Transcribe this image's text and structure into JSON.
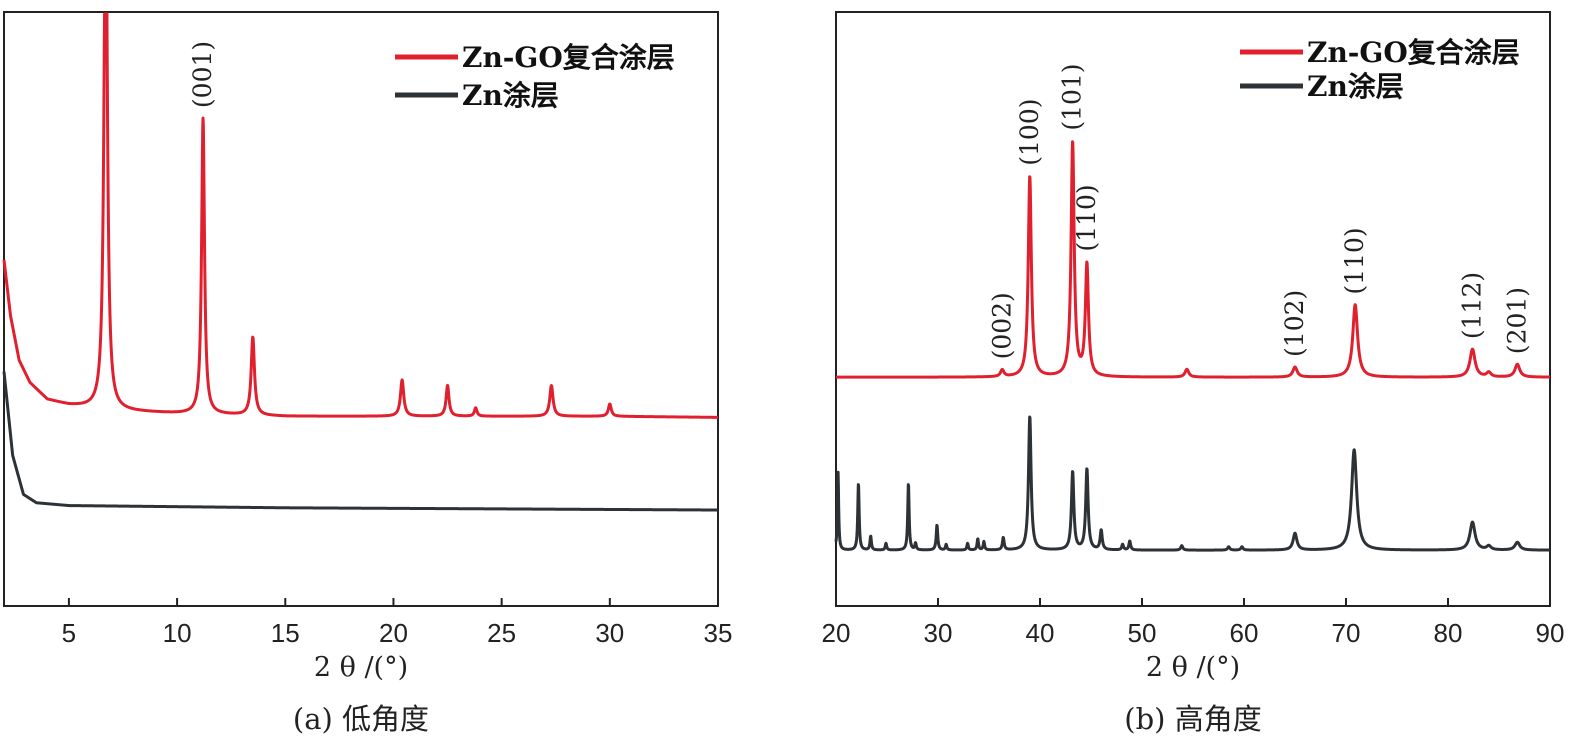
{
  "chart_data": [
    {
      "type": "line",
      "caption": "(a) 低角度",
      "xlabel": "2 θ /(°)",
      "ylabel": "",
      "xlim": [
        2,
        35
      ],
      "xticks": [
        5,
        10,
        15,
        20,
        25,
        30,
        35
      ],
      "yticks_shown": false,
      "legend_position": "top-right",
      "series": [
        {
          "name": "Zn-GO复合涂层",
          "color": "#e0202e",
          "baseline": [
            [
              2,
              0.62
            ],
            [
              2.3,
              0.52
            ],
            [
              2.7,
              0.44
            ],
            [
              3.2,
              0.4
            ],
            [
              4,
              0.37
            ],
            [
              5,
              0.36
            ],
            [
              6,
              0.355
            ],
            [
              7,
              0.35
            ],
            [
              10,
              0.345
            ],
            [
              15,
              0.34
            ],
            [
              20,
              0.34
            ],
            [
              25,
              0.34
            ],
            [
              30,
              0.34
            ],
            [
              35,
              0.338
            ]
          ],
          "peaks": [
            {
              "x": 6.7,
              "height": 1.0,
              "width": 0.09
            },
            {
              "x": 11.2,
              "height": 0.53,
              "width": 0.08
            },
            {
              "x": 13.5,
              "height": 0.14,
              "width": 0.09
            },
            {
              "x": 20.4,
              "height": 0.065,
              "width": 0.09
            },
            {
              "x": 22.5,
              "height": 0.055,
              "width": 0.08
            },
            {
              "x": 23.8,
              "height": 0.015,
              "width": 0.07
            },
            {
              "x": 27.3,
              "height": 0.055,
              "width": 0.09
            },
            {
              "x": 30.0,
              "height": 0.022,
              "width": 0.08
            }
          ]
        },
        {
          "name": "Zn涂层",
          "color": "#2c3236",
          "baseline": [
            [
              2,
              0.42
            ],
            [
              2.4,
              0.27
            ],
            [
              2.9,
              0.2
            ],
            [
              3.5,
              0.185
            ],
            [
              5,
              0.18
            ],
            [
              10,
              0.178
            ],
            [
              15,
              0.176
            ],
            [
              20,
              0.175
            ],
            [
              25,
              0.174
            ],
            [
              30,
              0.173
            ],
            [
              35,
              0.172
            ]
          ],
          "peaks": []
        }
      ],
      "annotations": [
        {
          "text": "(001)",
          "x": 11.2
        }
      ]
    },
    {
      "type": "line",
      "caption": "(b) 高角度",
      "xlabel": "2 θ /(°)",
      "ylabel": "",
      "xlim": [
        20,
        90
      ],
      "xticks": [
        20,
        30,
        40,
        50,
        60,
        70,
        80,
        90
      ],
      "yticks_shown": false,
      "legend_position": "top-right",
      "series": [
        {
          "name": "Zn-GO复合涂层",
          "color": "#e0202e",
          "baseline": [
            [
              20,
              0.41
            ],
            [
              40,
              0.41
            ],
            [
              60,
              0.41
            ],
            [
              90,
              0.41
            ]
          ],
          "peaks": [
            {
              "x": 36.3,
              "height": 0.012,
              "width": 0.2
            },
            {
              "x": 39.0,
              "height": 0.36,
              "width": 0.18
            },
            {
              "x": 43.2,
              "height": 0.42,
              "width": 0.18
            },
            {
              "x": 44.6,
              "height": 0.2,
              "width": 0.18
            },
            {
              "x": 54.4,
              "height": 0.014,
              "width": 0.22
            },
            {
              "x": 65.0,
              "height": 0.018,
              "width": 0.25
            },
            {
              "x": 70.9,
              "height": 0.13,
              "width": 0.28
            },
            {
              "x": 82.4,
              "height": 0.05,
              "width": 0.3
            },
            {
              "x": 84.0,
              "height": 0.008,
              "width": 0.25
            },
            {
              "x": 86.8,
              "height": 0.023,
              "width": 0.28
            }
          ]
        },
        {
          "name": "Zn涂层",
          "color": "#2c3236",
          "baseline": [
            [
              20,
              0.1
            ],
            [
              40,
              0.1
            ],
            [
              60,
              0.1
            ],
            [
              90,
              0.1
            ]
          ],
          "peaks": [
            {
              "x": 20.2,
              "height": 0.14,
              "width": 0.07
            },
            {
              "x": 22.2,
              "height": 0.12,
              "width": 0.08
            },
            {
              "x": 23.4,
              "height": 0.025,
              "width": 0.08
            },
            {
              "x": 24.9,
              "height": 0.012,
              "width": 0.08
            },
            {
              "x": 27.1,
              "height": 0.12,
              "width": 0.08
            },
            {
              "x": 27.8,
              "height": 0.012,
              "width": 0.08
            },
            {
              "x": 29.9,
              "height": 0.045,
              "width": 0.09
            },
            {
              "x": 30.8,
              "height": 0.01,
              "width": 0.08
            },
            {
              "x": 32.9,
              "height": 0.012,
              "width": 0.08
            },
            {
              "x": 33.9,
              "height": 0.02,
              "width": 0.08
            },
            {
              "x": 34.5,
              "height": 0.015,
              "width": 0.08
            },
            {
              "x": 36.4,
              "height": 0.022,
              "width": 0.1
            },
            {
              "x": 39.0,
              "height": 0.24,
              "width": 0.15
            },
            {
              "x": 43.2,
              "height": 0.14,
              "width": 0.14
            },
            {
              "x": 44.6,
              "height": 0.145,
              "width": 0.14
            },
            {
              "x": 46.0,
              "height": 0.035,
              "width": 0.12
            },
            {
              "x": 48.1,
              "height": 0.01,
              "width": 0.1
            },
            {
              "x": 48.8,
              "height": 0.016,
              "width": 0.1
            },
            {
              "x": 53.9,
              "height": 0.008,
              "width": 0.12
            },
            {
              "x": 58.5,
              "height": 0.006,
              "width": 0.12
            },
            {
              "x": 59.8,
              "height": 0.006,
              "width": 0.12
            },
            {
              "x": 65.0,
              "height": 0.03,
              "width": 0.22
            },
            {
              "x": 70.8,
              "height": 0.18,
              "width": 0.3
            },
            {
              "x": 82.4,
              "height": 0.05,
              "width": 0.3
            },
            {
              "x": 84.0,
              "height": 0.007,
              "width": 0.25
            },
            {
              "x": 86.8,
              "height": 0.014,
              "width": 0.28
            }
          ]
        }
      ],
      "annotations": [
        {
          "text": "(002)",
          "x": 36.3
        },
        {
          "text": "(100)",
          "x": 39.0
        },
        {
          "text": "(101)",
          "x": 43.2
        },
        {
          "text": "(110)",
          "x": 44.6
        },
        {
          "text": "(102)",
          "x": 65.0
        },
        {
          "text": "(110)",
          "x": 70.9
        },
        {
          "text": "(112)",
          "x": 82.4
        },
        {
          "text": "(201)",
          "x": 86.8
        }
      ]
    }
  ]
}
